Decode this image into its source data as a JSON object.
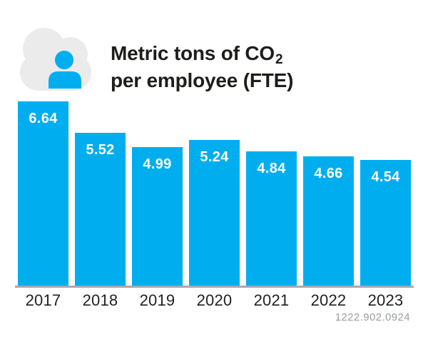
{
  "header": {
    "icon": "cloud-person-icon",
    "title_line1": "Metric tons of CO",
    "title_subscript": "2",
    "title_line2": "per employee (FTE)"
  },
  "chart_data": {
    "type": "bar",
    "title": "Metric tons of CO₂ per employee (FTE)",
    "categories": [
      "2017",
      "2018",
      "2019",
      "2020",
      "2021",
      "2022",
      "2023"
    ],
    "values": [
      6.64,
      5.52,
      4.99,
      5.24,
      4.84,
      4.66,
      4.54
    ],
    "value_labels": [
      "6.64",
      "5.52",
      "4.99",
      "5.24",
      "4.84",
      "4.66",
      "4.54"
    ],
    "xlabel": "",
    "ylabel": "",
    "ylim": [
      0,
      6.64
    ],
    "grid": false,
    "legend": false,
    "value_labels_position": "inside-top",
    "bar_color": "#00aeef",
    "value_label_color": "#ffffff",
    "axis_line_color": "#a7a9ac",
    "tick_label_color": "#231f20"
  },
  "footer": {
    "reference_number": "1222.902.0924"
  },
  "colors": {
    "accent_blue": "#00aeef",
    "cloud_gray": "#ebebec",
    "title_black": "#1d1d1b",
    "footnote_gray": "#9b9da0",
    "background": "#ffffff"
  }
}
